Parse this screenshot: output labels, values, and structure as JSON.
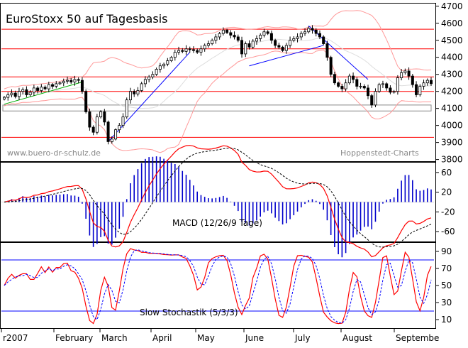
{
  "chart_data": {
    "type": "candlestick-with-indicators",
    "title": "EuroStoxx 50 auf Tagesbasis",
    "watermark_left": "www.buero-dr-schulz.de",
    "watermark_right": "Hoppenstedt-Charts",
    "x_tick_labels": [
      "r2007",
      "February",
      "March",
      "April",
      "May",
      "June",
      "July",
      "August",
      "Septembe"
    ],
    "price_panel": {
      "y_ticks": [
        3800,
        3900,
        4000,
        4100,
        4200,
        4300,
        4400,
        4500,
        4600,
        4700
      ],
      "ylim": [
        3790,
        4720
      ],
      "horizontal_levels": [
        3930,
        4200,
        4285,
        4450,
        4565
      ],
      "box_range": [
        4085,
        4120
      ],
      "colors": {
        "level_lines": "#ff0000",
        "trendlines": "#0000ff",
        "support_green": "#00aa00",
        "bollinger": "#ff9999",
        "moving_avg": "#dddddd"
      },
      "close_path": [
        4165,
        4180,
        4190,
        4170,
        4200,
        4210,
        4180,
        4195,
        4220,
        4205,
        4225,
        4215,
        4240,
        4230,
        4245,
        4250,
        4260,
        4265,
        4255,
        4270,
        4265,
        4200,
        4080,
        3990,
        3960,
        4050,
        4080,
        4020,
        3905,
        3920,
        3975,
        4000,
        4050,
        4150,
        4200,
        4185,
        4205,
        4245,
        4270,
        4285,
        4300,
        4330,
        4350,
        4360,
        4380,
        4400,
        4430,
        4440,
        4435,
        4450,
        4445,
        4440,
        4430,
        4450,
        4470,
        4480,
        4500,
        4520,
        4540,
        4560,
        4545,
        4530,
        4520,
        4500,
        4420,
        4480,
        4460,
        4495,
        4510,
        4530,
        4550,
        4540,
        4500,
        4470,
        4460,
        4440,
        4470,
        4500,
        4510,
        4520,
        4540,
        4550,
        4570,
        4560,
        4540,
        4520,
        4480,
        4400,
        4300,
        4250,
        4230,
        4215,
        4250,
        4290,
        4270,
        4230,
        4230,
        4220,
        4175,
        4120,
        4200,
        4240,
        4245,
        4220,
        4195,
        4200,
        4280,
        4310,
        4320,
        4290,
        4240,
        4180,
        4230,
        4250,
        4265,
        4245
      ]
    },
    "macd_panel": {
      "label": "MACD (12/26/9 Tage)",
      "y_ticks": [
        60,
        20,
        -20,
        -60
      ],
      "ylim": [
        -80,
        80
      ]
    },
    "stochastic_panel": {
      "label": "Slow Stochastik (5/3/3)",
      "y_ticks": [
        90,
        70,
        50,
        30,
        10
      ],
      "ylim": [
        0,
        100
      ],
      "signal_levels": [
        80,
        20
      ]
    }
  }
}
